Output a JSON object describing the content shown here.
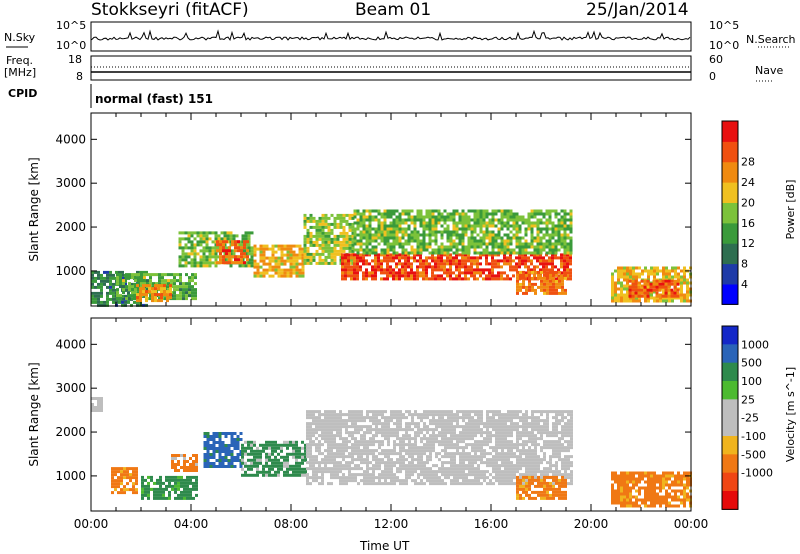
{
  "header": {
    "station": "Stokkseyri (fitACF)",
    "beam": "Beam 01",
    "date": "25/Jan/2014"
  },
  "strip_labels": {
    "nsky": "N.Sky",
    "nsearch": "N.Search",
    "freq_line1": "Freq.",
    "freq_line2": "[MHz]",
    "nave": "Nave",
    "cpid": "CPID",
    "cpid_value": "normal (fast) 151",
    "nsky_ticks": [
      "10^5",
      "10^0"
    ],
    "nsearch_ticks": [
      "10^5",
      "10^0"
    ],
    "freq_ticks": [
      "18",
      "8"
    ],
    "nave_ticks": [
      "60",
      "0"
    ]
  },
  "xaxis": {
    "label": "Time UT",
    "ticks": [
      "00:00",
      "04:00",
      "08:00",
      "12:00",
      "16:00",
      "20:00",
      "00:00"
    ]
  },
  "colors": {
    "power_scale": [
      "#0000ff",
      "#1e3aa8",
      "#2e6e50",
      "#3a9a3a",
      "#7cc23a",
      "#f0c020",
      "#f08a10",
      "#f05010",
      "#e81010"
    ],
    "velocity_scale": [
      "#1428c8",
      "#2a64b8",
      "#2e8a4c",
      "#4cba30",
      "#bebebe",
      "#bebebe",
      "#f0b41e",
      "#f07814",
      "#f04614",
      "#e60a0a"
    ],
    "ground_scatter": "#b4b4b4"
  },
  "chart_data": [
    {
      "type": "heatmap",
      "panel": "power",
      "ylabel": "Slant Range [km]",
      "yticks": [
        1000,
        2000,
        3000,
        4000
      ],
      "ylim": [
        200,
        4600
      ],
      "xlim_hours": [
        0,
        24
      ],
      "colorbar": {
        "label": "Power [dB]",
        "ticks": [
          "4",
          "8",
          "12",
          "16",
          "20",
          "24",
          "28"
        ],
        "range": [
          0,
          30
        ]
      },
      "regions": [
        {
          "t0": 0.0,
          "t1": 2.2,
          "r0": 200,
          "r1": 1000,
          "value": 9
        },
        {
          "t0": 1.0,
          "t1": 4.2,
          "r0": 400,
          "r1": 950,
          "value": 13
        },
        {
          "t0": 1.8,
          "t1": 3.2,
          "r0": 300,
          "r1": 700,
          "value": 22
        },
        {
          "t0": 3.5,
          "t1": 6.5,
          "r0": 1100,
          "r1": 1900,
          "value": 14
        },
        {
          "t0": 5.0,
          "t1": 6.3,
          "r0": 1200,
          "r1": 1700,
          "value": 25
        },
        {
          "t0": 6.5,
          "t1": 8.5,
          "r0": 900,
          "r1": 1600,
          "value": 20
        },
        {
          "t0": 8.5,
          "t1": 10.5,
          "r0": 1200,
          "r1": 2300,
          "value": 16
        },
        {
          "t0": 10.0,
          "t1": 19.2,
          "r0": 800,
          "r1": 1400,
          "value": 27
        },
        {
          "t0": 10.5,
          "t1": 19.2,
          "r0": 1400,
          "r1": 2400,
          "value": 14
        },
        {
          "t0": 17.0,
          "t1": 19.0,
          "r0": 500,
          "r1": 1000,
          "value": 24
        },
        {
          "t0": 20.8,
          "t1": 24.0,
          "r0": 300,
          "r1": 1100,
          "value": 19
        },
        {
          "t0": 21.5,
          "t1": 23.5,
          "r0": 400,
          "r1": 800,
          "value": 26
        }
      ]
    },
    {
      "type": "heatmap",
      "panel": "velocity",
      "ylabel": "Slant Range [km]",
      "yticks": [
        1000,
        2000,
        3000,
        4000
      ],
      "ylim": [
        200,
        4600
      ],
      "xlim_hours": [
        0,
        24
      ],
      "colorbar": {
        "label": "Velocity [m s^-1]",
        "ticks": [
          "1000",
          "500",
          "100",
          "25",
          "-25",
          "-100",
          "-500",
          "-1000"
        ]
      },
      "regions": [
        {
          "t0": 0.0,
          "t1": 0.4,
          "r0": 2500,
          "r1": 2800,
          "value": 0
        },
        {
          "t0": 0.8,
          "t1": 1.8,
          "r0": 600,
          "r1": 1200,
          "value": -200
        },
        {
          "t0": 2.0,
          "t1": 4.2,
          "r0": 500,
          "r1": 1000,
          "value": 300
        },
        {
          "t0": 3.2,
          "t1": 4.2,
          "r0": 1100,
          "r1": 1500,
          "value": -100
        },
        {
          "t0": 4.5,
          "t1": 6.0,
          "r0": 1200,
          "r1": 2000,
          "value": 500
        },
        {
          "t0": 6.0,
          "t1": 8.6,
          "r0": 1000,
          "r1": 1800,
          "value": 120
        },
        {
          "t0": 8.6,
          "t1": 19.2,
          "r0": 800,
          "r1": 2500,
          "value": 0
        },
        {
          "t0": 17.0,
          "t1": 19.0,
          "r0": 500,
          "r1": 1000,
          "value": -300
        },
        {
          "t0": 20.8,
          "t1": 24.0,
          "r0": 300,
          "r1": 1100,
          "value": -300
        }
      ]
    }
  ]
}
